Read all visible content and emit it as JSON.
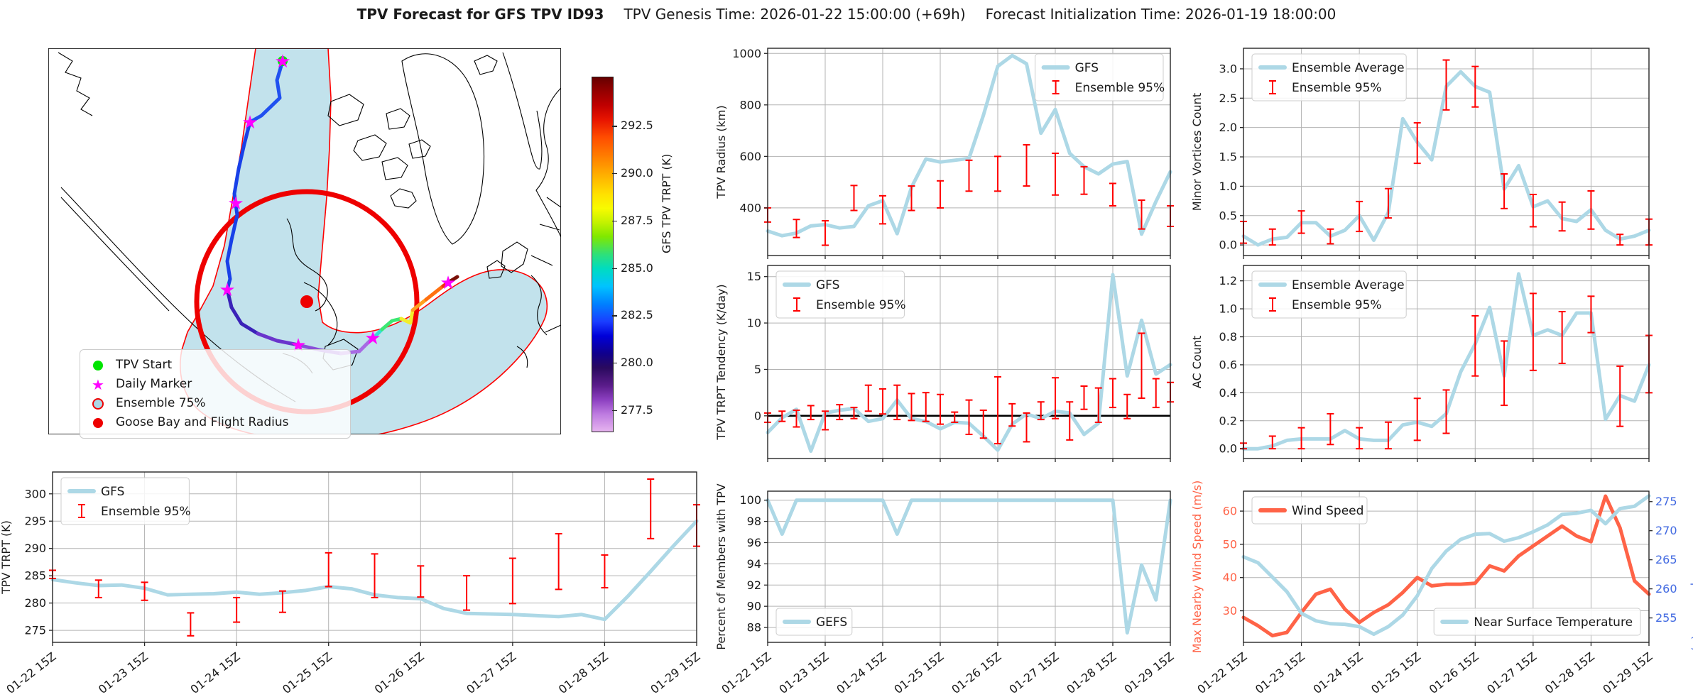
{
  "title": {
    "main": "TPV Forecast for GFS TPV ID93",
    "genesis": "TPV Genesis Time: 2026-01-22 15:00:00 (+69h)",
    "init": "Forecast Initialization Time: 2026-01-19 18:00:00"
  },
  "colors": {
    "gfs_line": "#ADD8E6",
    "error_bar": "#FF0000",
    "wind_line": "#FF6347",
    "temp_axis": "#4169E1",
    "grid": "#B3B3B3",
    "spine": "#262626",
    "daily_marker": "#FF00FF",
    "tpv_start": "#00E400",
    "flight_radius": "#EE0000",
    "envelope_fill": "#ADD8E6",
    "envelope_edge": "#FF0000"
  },
  "time_labels": [
    "01-22 15Z",
    "01-23 15Z",
    "01-24 15Z",
    "01-25 15Z",
    "01-26 15Z",
    "01-27 15Z",
    "01-28 15Z",
    "01-29 15Z"
  ],
  "map": {
    "legend": {
      "items": [
        {
          "label": "TPV Start",
          "marker": "green-dot"
        },
        {
          "label": "Daily Marker",
          "marker": "magenta-star"
        },
        {
          "label": "Ensemble 75%",
          "marker": "envelope-circle"
        },
        {
          "label": "Goose Bay and Flight Radius",
          "marker": "red-dot"
        }
      ]
    },
    "colorbar": {
      "label": "GFS TPV TRPT (K)",
      "ticks": [
        292.5,
        290.0,
        287.5,
        285.0,
        282.5,
        280.0,
        277.5
      ],
      "vmin": 276.4,
      "vmax": 295.1
    }
  },
  "chart_data": [
    {
      "id": "tpv_radius",
      "type": "line",
      "ylabel": "TPV Radius (km)",
      "ylim": [
        215,
        1020
      ],
      "yticks": [
        400,
        600,
        800,
        1000
      ],
      "decimals": 0,
      "series": [
        {
          "name": "GFS",
          "color": "#ADD8E6",
          "values": [
            310,
            292,
            302,
            330,
            335,
            322,
            328,
            408,
            428,
            300,
            480,
            590,
            578,
            585,
            592,
            760,
            950,
            992,
            960,
            690,
            782,
            612,
            560,
            532,
            570,
            580,
            298,
            425,
            540
          ]
        }
      ],
      "error_bars": {
        "name": "Ensemble 95%",
        "x_indices": [
          0,
          2,
          4,
          6,
          8,
          10,
          12,
          14,
          16,
          18,
          20,
          22,
          24,
          26,
          28
        ],
        "ranges": [
          [
            345,
            400
          ],
          [
            285,
            355
          ],
          [
            255,
            350
          ],
          [
            390,
            487
          ],
          [
            338,
            447
          ],
          [
            390,
            485
          ],
          [
            400,
            505
          ],
          [
            465,
            585
          ],
          [
            465,
            600
          ],
          [
            485,
            645
          ],
          [
            450,
            612
          ],
          [
            453,
            560
          ],
          [
            408,
            495
          ],
          [
            318,
            430
          ],
          [
            328,
            408
          ]
        ]
      },
      "legends": [
        {
          "pos": "tr",
          "entries": [
            {
              "label": "GFS",
              "swatch": "line",
              "color": "#ADD8E6"
            },
            {
              "label": "Ensemble 95%",
              "swatch": "errorbar",
              "color": "#FF0000"
            }
          ]
        }
      ],
      "show_x_labels": false
    },
    {
      "id": "trpt_tendency",
      "type": "line",
      "ylabel": "TPV TRPT Tendency (K/day)",
      "ylim": [
        -4.6,
        16.2
      ],
      "yticks": [
        0,
        5,
        10,
        15
      ],
      "decimals": 0,
      "zero_line": true,
      "series": [
        {
          "name": "GFS",
          "color": "#ADD8E6",
          "values": [
            -1.8,
            -0.2,
            0.7,
            -3.8,
            0.3,
            0.6,
            0.8,
            -0.6,
            -0.3,
            1.7,
            -0.3,
            -0.6,
            -1.4,
            -0.7,
            -0.8,
            -2.2,
            -3.7,
            -0.9,
            0.2,
            -0.3,
            0.5,
            0.3,
            -2.0,
            -0.8,
            15.2,
            4.3,
            10.3,
            4.5,
            5.5
          ]
        }
      ],
      "error_bars": {
        "name": "Ensemble 95%",
        "x_indices": [
          0,
          1,
          2,
          3,
          4,
          5,
          6,
          7,
          8,
          9,
          10,
          11,
          12,
          13,
          14,
          15,
          16,
          17,
          18,
          19,
          20,
          21,
          22,
          23,
          24,
          25,
          26,
          27,
          28
        ],
        "ranges": [
          [
            -0.7,
            0.3
          ],
          [
            -0.6,
            0.5
          ],
          [
            -1.2,
            0.6
          ],
          [
            -0.4,
            1.1
          ],
          [
            -1.5,
            0.5
          ],
          [
            -0.4,
            1.2
          ],
          [
            -0.3,
            0.9
          ],
          [
            0.5,
            3.3
          ],
          [
            0.2,
            2.9
          ],
          [
            -0.4,
            3.3
          ],
          [
            -0.5,
            2.4
          ],
          [
            -0.6,
            2.5
          ],
          [
            -0.9,
            2.3
          ],
          [
            -0.7,
            0.4
          ],
          [
            -2.0,
            1.7
          ],
          [
            -2.4,
            0.6
          ],
          [
            -3.0,
            4.2
          ],
          [
            -1.1,
            1.3
          ],
          [
            -2.8,
            0.3
          ],
          [
            -0.4,
            1.5
          ],
          [
            -0.3,
            4.1
          ],
          [
            -2.6,
            1.5
          ],
          [
            0.7,
            3.2
          ],
          [
            -0.7,
            3.0
          ],
          [
            0.9,
            4.0
          ],
          [
            -0.3,
            2.3
          ],
          [
            1.9,
            8.9
          ],
          [
            0.9,
            4.0
          ],
          [
            1.5,
            3.6
          ]
        ]
      },
      "legends": [
        {
          "pos": "tl",
          "entries": [
            {
              "label": "GFS",
              "swatch": "line",
              "color": "#ADD8E6"
            },
            {
              "label": "Ensemble 95%",
              "swatch": "errorbar",
              "color": "#FF0000"
            }
          ]
        }
      ],
      "show_x_labels": false
    },
    {
      "id": "percent_members",
      "type": "line",
      "ylabel": "Percent of Members with TPV",
      "ylim": [
        86.6,
        100.85
      ],
      "yticks": [
        88,
        90,
        92,
        94,
        96,
        98,
        100
      ],
      "decimals": 0,
      "series": [
        {
          "name": "GEFS",
          "color": "#ADD8E6",
          "values": [
            100,
            96.8,
            100,
            100,
            100,
            100,
            100,
            100,
            100,
            96.8,
            100,
            100,
            100,
            100,
            100,
            100,
            100,
            100,
            100,
            100,
            100,
            100,
            100,
            100,
            100,
            87.5,
            93.9,
            90.6,
            100
          ]
        }
      ],
      "legends": [
        {
          "pos": "bl",
          "entries": [
            {
              "label": "GEFS",
              "swatch": "line",
              "color": "#ADD8E6"
            }
          ]
        }
      ],
      "show_x_labels": true
    },
    {
      "id": "minor_vortices",
      "type": "line",
      "ylabel": "Minor Vortices Count",
      "ylim": [
        -0.18,
        3.35
      ],
      "yticks": [
        0.0,
        0.5,
        1.0,
        1.5,
        2.0,
        2.5,
        3.0
      ],
      "decimals": 1,
      "series": [
        {
          "name": "Ensemble Average",
          "color": "#ADD8E6",
          "values": [
            0.15,
            0.0,
            0.1,
            0.13,
            0.38,
            0.38,
            0.15,
            0.25,
            0.5,
            0.08,
            0.55,
            2.15,
            1.75,
            1.45,
            2.7,
            2.95,
            2.7,
            2.6,
            0.95,
            1.35,
            0.65,
            0.75,
            0.45,
            0.4,
            0.6,
            0.25,
            0.1,
            0.15,
            0.25
          ]
        }
      ],
      "error_bars": {
        "name": "Ensemble 95%",
        "x_indices": [
          0,
          2,
          4,
          6,
          8,
          10,
          12,
          14,
          16,
          18,
          20,
          22,
          24,
          26,
          28
        ],
        "ranges": [
          [
            0.03,
            0.4
          ],
          [
            0.0,
            0.27
          ],
          [
            0.2,
            0.58
          ],
          [
            0.02,
            0.27
          ],
          [
            0.23,
            0.74
          ],
          [
            0.46,
            0.96
          ],
          [
            1.39,
            2.08
          ],
          [
            2.3,
            3.15
          ],
          [
            2.35,
            3.04
          ],
          [
            0.62,
            1.21
          ],
          [
            0.31,
            0.86
          ],
          [
            0.24,
            0.73
          ],
          [
            0.27,
            0.92
          ],
          [
            0.0,
            0.18
          ],
          [
            0.0,
            0.44
          ]
        ]
      },
      "legends": [
        {
          "pos": "tl",
          "entries": [
            {
              "label": "Ensemble Average",
              "swatch": "line",
              "color": "#ADD8E6"
            },
            {
              "label": "Ensemble 95%",
              "swatch": "errorbar",
              "color": "#FF0000"
            }
          ]
        }
      ],
      "show_x_labels": false
    },
    {
      "id": "ac_count",
      "type": "line",
      "ylabel": "AC Count",
      "ylim": [
        -0.07,
        1.31
      ],
      "yticks": [
        0.0,
        0.2,
        0.4,
        0.6,
        0.8,
        1.0,
        1.2
      ],
      "decimals": 1,
      "series": [
        {
          "name": "Ensemble Average",
          "color": "#ADD8E6",
          "values": [
            0.0,
            0.0,
            0.02,
            0.06,
            0.07,
            0.07,
            0.07,
            0.13,
            0.07,
            0.06,
            0.06,
            0.17,
            0.19,
            0.16,
            0.25,
            0.55,
            0.75,
            1.01,
            0.52,
            1.25,
            0.81,
            0.85,
            0.81,
            0.97,
            0.97,
            0.21,
            0.38,
            0.34,
            0.6
          ]
        }
      ],
      "error_bars": {
        "name": "Ensemble 95%",
        "x_indices": [
          0,
          2,
          4,
          6,
          8,
          10,
          12,
          14,
          16,
          18,
          20,
          22,
          24,
          26,
          28
        ],
        "ranges": [
          [
            0.0,
            0.04
          ],
          [
            0.0,
            0.09
          ],
          [
            0.0,
            0.15
          ],
          [
            0.03,
            0.25
          ],
          [
            0.0,
            0.15
          ],
          [
            0.0,
            0.19
          ],
          [
            0.06,
            0.36
          ],
          [
            0.11,
            0.42
          ],
          [
            0.52,
            0.95
          ],
          [
            0.31,
            0.77
          ],
          [
            0.56,
            1.11
          ],
          [
            0.61,
            0.98
          ],
          [
            0.83,
            1.09
          ],
          [
            0.16,
            0.59
          ],
          [
            0.4,
            0.81
          ]
        ]
      },
      "legends": [
        {
          "pos": "tl",
          "entries": [
            {
              "label": "Ensemble Average",
              "swatch": "line",
              "color": "#ADD8E6"
            },
            {
              "label": "Ensemble 95%",
              "swatch": "errorbar",
              "color": "#FF0000"
            }
          ]
        }
      ],
      "show_x_labels": false
    },
    {
      "id": "wind_temp",
      "type": "line",
      "ylabel": "Max Nearby Wind Speed (m/s)",
      "ylabel_right": "Near Surface Temperature (K)",
      "ylim": [
        20.5,
        66
      ],
      "yticks": [
        30,
        40,
        50,
        60
      ],
      "decimals": 0,
      "ylim_right": [
        250.8,
        276.8
      ],
      "yticks_right": [
        255,
        260,
        265,
        270,
        275
      ],
      "series": [
        {
          "name": "Wind Speed",
          "color": "#FF6347",
          "axis": "left",
          "values": [
            28,
            25.5,
            22.5,
            23.5,
            29.5,
            35,
            36.5,
            30.5,
            26.5,
            29.5,
            31.8,
            35.5,
            40,
            37.5,
            38,
            38,
            38.3,
            43.5,
            42,
            46.5,
            49.5,
            52.5,
            55.5,
            52.5,
            50.8,
            64.5,
            55,
            39,
            35
          ]
        },
        {
          "name": "Near Surface Temperature",
          "color": "#ADD8E6",
          "axis": "right",
          "values": [
            265.5,
            264.5,
            262.0,
            259.5,
            255.8,
            254.5,
            254.0,
            253.9,
            253.5,
            252.2,
            253.5,
            255.5,
            258.8,
            263.5,
            266.5,
            268.5,
            269.4,
            269.5,
            268.2,
            268.8,
            269.8,
            271.0,
            272.8,
            273.0,
            273.5,
            271.2,
            273.8,
            274.2,
            276.0
          ]
        }
      ],
      "legends": [
        {
          "pos": "tl",
          "entries": [
            {
              "label": "Wind Speed",
              "swatch": "line",
              "color": "#FF6347"
            }
          ]
        },
        {
          "pos": "br",
          "entries": [
            {
              "label": "Near Surface Temperature",
              "swatch": "line",
              "color": "#ADD8E6"
            }
          ]
        }
      ],
      "show_x_labels": true
    },
    {
      "id": "tpv_trpt",
      "type": "line",
      "ylabel": "TPV TRPT (K)",
      "ylim": [
        272.8,
        304
      ],
      "yticks": [
        275,
        280,
        285,
        290,
        295,
        300
      ],
      "decimals": 0,
      "series": [
        {
          "name": "GFS",
          "color": "#ADD8E6",
          "values": [
            284.3,
            283.7,
            283.2,
            283.3,
            282.7,
            281.5,
            281.6,
            281.7,
            282.0,
            281.6,
            281.9,
            282.3,
            283.0,
            282.6,
            281.5,
            281.0,
            280.8,
            279.0,
            278.1,
            278.0,
            277.9,
            277.7,
            277.5,
            277.9,
            277.0,
            281.2,
            285.8,
            290.5,
            295.0
          ]
        }
      ],
      "error_bars": {
        "name": "Ensemble 95%",
        "x_indices": [
          0,
          2,
          4,
          6,
          8,
          10,
          12,
          14,
          16,
          18,
          20,
          22,
          24,
          26,
          28
        ],
        "ranges": [
          [
            284.5,
            286.0
          ],
          [
            281.0,
            284.2
          ],
          [
            280.5,
            283.8
          ],
          [
            274.0,
            278.2
          ],
          [
            276.5,
            281.0
          ],
          [
            278.3,
            282.2
          ],
          [
            283.0,
            289.2
          ],
          [
            281.0,
            289.0
          ],
          [
            281.1,
            286.8
          ],
          [
            278.7,
            285.0
          ],
          [
            279.9,
            288.2
          ],
          [
            282.5,
            292.7
          ],
          [
            282.8,
            288.8
          ],
          [
            291.8,
            302.7
          ],
          [
            290.4,
            298.0
          ]
        ]
      },
      "legends": [
        {
          "pos": "tl",
          "entries": [
            {
              "label": "GFS",
              "swatch": "line",
              "color": "#ADD8E6"
            },
            {
              "label": "Ensemble 95%",
              "swatch": "errorbar",
              "color": "#FF0000"
            }
          ]
        }
      ],
      "show_x_labels": true
    }
  ]
}
